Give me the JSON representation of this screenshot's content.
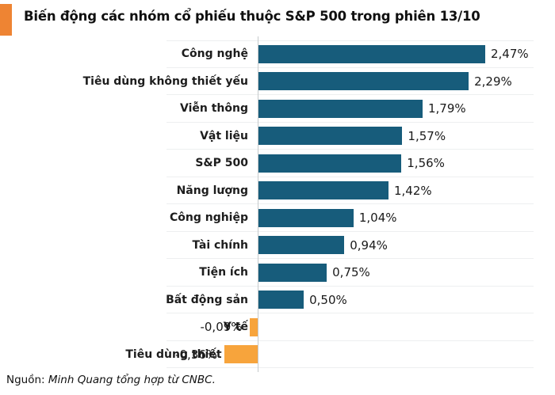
{
  "title": "Biến động các nhóm cổ phiếu thuộc S&P 500 trong phiên 13/10",
  "source": {
    "prefix": "Nguồn: ",
    "text": "Minh Quang tổng hợp từ CNBC."
  },
  "colors": {
    "positive_bar": "#175c7b",
    "negative_bar": "#f7a43c",
    "accent_square": "#ee8433",
    "grid_line": "#edeff0",
    "baseline": "#c6cacc",
    "text": "#1a1a1a"
  },
  "chart_data": {
    "type": "bar",
    "orientation": "horizontal",
    "title": "Biến động các nhóm cổ phiếu thuộc S&P 500 trong phiên 13/10",
    "unit": "%",
    "categories": [
      "Công nghệ",
      "Tiêu dùng không thiết yếu",
      "Viễn thông",
      "Vật liệu",
      "S&P 500",
      "Năng lượng",
      "Công nghiệp",
      "Tài chính",
      "Tiện ích",
      "Bất động sản",
      "Y tế",
      "Tiêu dùng thiết yếu"
    ],
    "values": [
      2.47,
      2.29,
      1.79,
      1.57,
      1.56,
      1.42,
      1.04,
      0.94,
      0.75,
      0.5,
      -0.09,
      -0.36
    ],
    "value_labels": [
      "2,47%",
      "2,29%",
      "1,79%",
      "1,57%",
      "1,56%",
      "1,42%",
      "1,04%",
      "0,94%",
      "0,75%",
      "0,50%",
      "-0,09%",
      "-0,36%"
    ],
    "xlabel": "",
    "ylabel": "",
    "xlim": [
      -1.0,
      3.0
    ],
    "grid": "row-separators",
    "legend": null,
    "baseline_value": 0
  }
}
